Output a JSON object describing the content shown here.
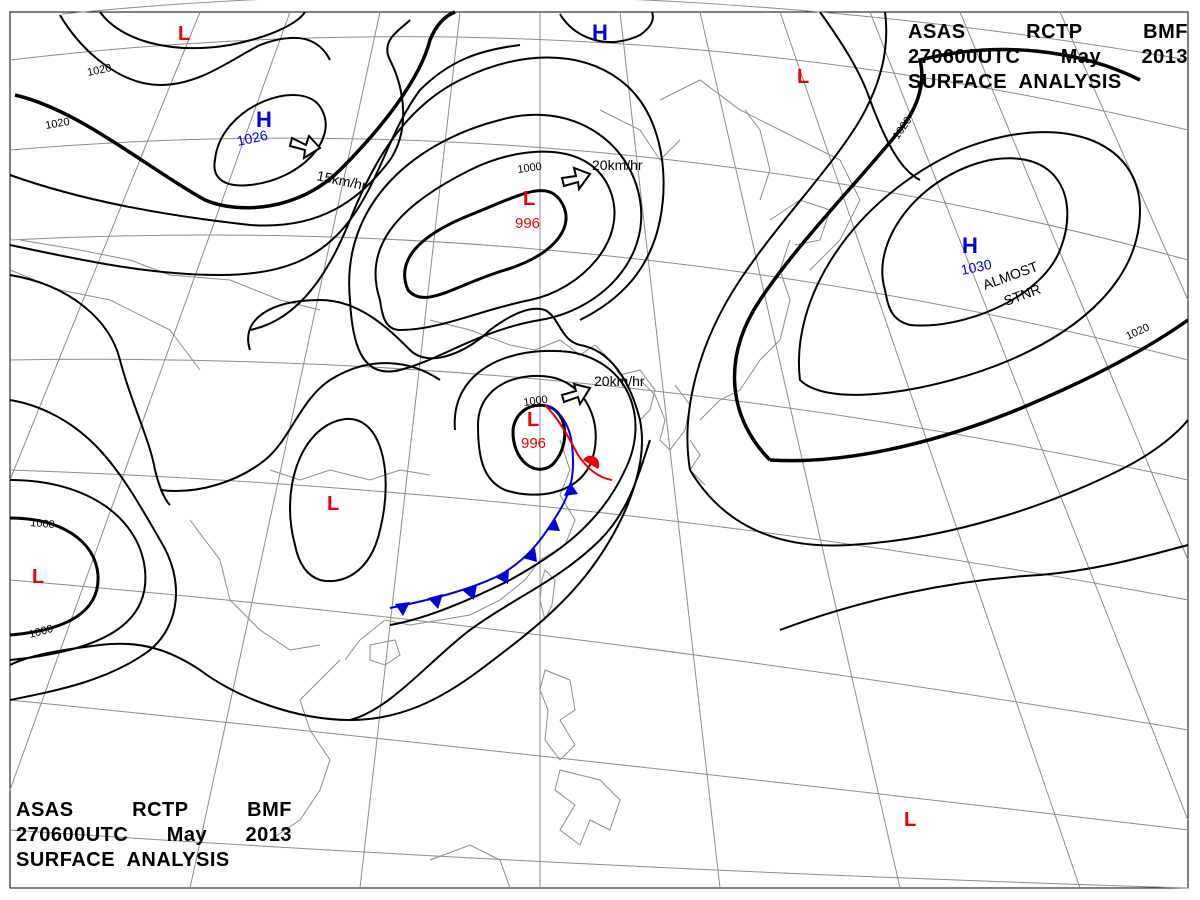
{
  "header": {
    "line1": [
      "ASAS",
      "RCTP",
      "BMF"
    ],
    "line2": [
      "270600UTC",
      "May",
      "2013"
    ],
    "line3": "SURFACE  ANALYSIS"
  },
  "footer": {
    "line1": [
      "ASAS",
      "RCTP",
      "BMF"
    ],
    "line2": [
      "270600UTC",
      "May",
      "2013"
    ],
    "line3": "SURFACE  ANALYSIS"
  },
  "colors": {
    "high": "#0000dd",
    "low": "#ee0000",
    "isobar": "#000000",
    "coast": "#8c8c8c",
    "grid": "#8c8c8c"
  },
  "pressure_systems": [
    {
      "type": "L",
      "pressure": ""
    },
    {
      "type": "H",
      "pressure": ""
    },
    {
      "type": "H",
      "pressure": "1026"
    },
    {
      "type": "L",
      "pressure": ""
    },
    {
      "type": "L",
      "pressure": "996"
    },
    {
      "type": "H",
      "pressure": "1030"
    },
    {
      "type": "L",
      "pressure": "996"
    },
    {
      "type": "L",
      "pressure": ""
    },
    {
      "type": "L",
      "pressure": ""
    },
    {
      "type": "L",
      "pressure": ""
    }
  ],
  "isobar_labels": [
    "1020",
    "1020",
    "1000",
    "1020",
    "1020",
    "1000",
    "1000",
    "1000"
  ],
  "motion_labels": [
    "15km/hr",
    "20km/hr",
    "20km/hr"
  ],
  "annotations": {
    "almost": "ALMOST",
    "stnr": "STNR"
  }
}
